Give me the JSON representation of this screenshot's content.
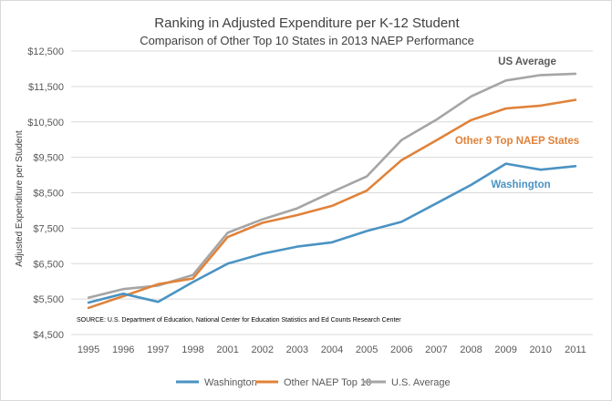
{
  "chart_data": {
    "type": "line",
    "title": "Ranking in Adjusted Expenditure per K-12 Student",
    "subtitle": "Comparison of Other Top 10 States in 2013 NAEP Performance",
    "xlabel": "",
    "ylabel": "Adjusted Expenditure per Student",
    "ylim": [
      4500,
      12500
    ],
    "yticks": [
      "$4,500",
      "$5,500",
      "$6,500",
      "$7,500",
      "$8,500",
      "$9,500",
      "$10,500",
      "$11,500",
      "$12,500"
    ],
    "yticks_values": [
      4500,
      5500,
      6500,
      7500,
      8500,
      9500,
      10500,
      11500,
      12500
    ],
    "categories": [
      "1995",
      "1996",
      "1997",
      "1998",
      "2001",
      "2002",
      "2003",
      "2004",
      "2005",
      "2006",
      "2007",
      "2008",
      "2009",
      "2010",
      "2011"
    ],
    "grid": true,
    "legend_position": "bottom",
    "series": [
      {
        "name": "Washington",
        "color": "#4b93c3",
        "values": [
          5400,
          5650,
          5420,
          5980,
          6500,
          6780,
          6980,
          7100,
          7420,
          7680,
          8200,
          8720,
          9320,
          9150,
          9250
        ]
      },
      {
        "name": "Other NAEP Top 10",
        "color": "#e0823a",
        "values": [
          5250,
          5580,
          5920,
          6080,
          7250,
          7650,
          7870,
          8130,
          8560,
          9420,
          9980,
          10550,
          10880,
          10960,
          11120
        ]
      },
      {
        "name": "U.S. Average",
        "color": "#a5a5a5",
        "values": [
          5540,
          5780,
          5880,
          6180,
          7370,
          7750,
          8060,
          8520,
          8960,
          9990,
          10560,
          11220,
          11670,
          11820,
          11860
        ]
      }
    ],
    "annotations": [
      {
        "text": "US Average",
        "color": "#595959"
      },
      {
        "text": "Other 9 Top NAEP States",
        "color": "#e0823a"
      },
      {
        "text": "Washington",
        "color": "#4b93c3"
      }
    ],
    "source_note": "SOURCE: U.S. Department of Education, National Center for Education Statistics and Ed Counts Research Center"
  }
}
